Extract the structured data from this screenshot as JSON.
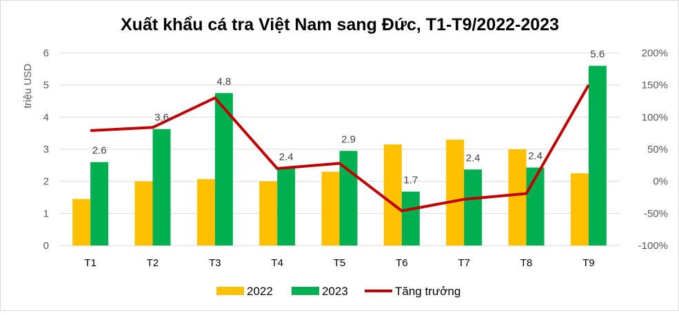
{
  "chart_data": {
    "type": "bar",
    "title": "Xuất khẩu cá tra Việt Nam sang Đức, T1-T9/2022-2023",
    "ylabel": "triệu USD",
    "ylim": [
      0,
      6
    ],
    "yticks": [
      "0",
      "1",
      "2",
      "3",
      "4",
      "5",
      "6"
    ],
    "y2lim": [
      -100,
      200
    ],
    "y2ticks": [
      "-100%",
      "-50%",
      "0%",
      "50%",
      "100%",
      "150%",
      "200%"
    ],
    "categories": [
      "T1",
      "T2",
      "T3",
      "T4",
      "T5",
      "T6",
      "T7",
      "T8",
      "T9"
    ],
    "series": [
      {
        "name": "2022",
        "type": "bar",
        "color": "#FFC000",
        "values": [
          1.45,
          2.0,
          2.07,
          2.0,
          2.3,
          3.15,
          3.3,
          3.0,
          2.25
        ]
      },
      {
        "name": "2023",
        "type": "bar",
        "color": "#00B050",
        "values": [
          2.6,
          3.63,
          4.75,
          2.4,
          2.95,
          1.68,
          2.37,
          2.43,
          5.6
        ],
        "labels": [
          "2.6",
          "3.6",
          "4.8",
          "2.4",
          "2.9",
          "1.7",
          "2.4",
          "2.4",
          "5.6"
        ]
      },
      {
        "name": "Tăng trưởng",
        "type": "line",
        "axis": "right",
        "color": "#C00000",
        "values": [
          79,
          84,
          130,
          20,
          28,
          -46,
          -28,
          -19,
          150
        ]
      }
    ],
    "grid": true,
    "legend": "bottom"
  }
}
